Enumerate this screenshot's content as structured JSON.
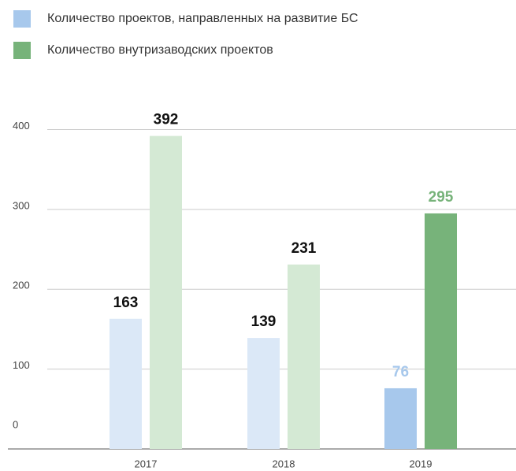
{
  "chart_data": {
    "type": "bar",
    "categories": [
      "2017",
      "2018",
      "2019"
    ],
    "series": [
      {
        "name": "Количество проектов, направленных на развитие БС",
        "color": "#a7c8ec",
        "colors": [
          "#dbe8f7",
          "#dbe8f7",
          "#a7c8ec"
        ],
        "label_colors": [
          "#111111",
          "#111111",
          "#a7c8ec"
        ],
        "values": [
          163,
          139,
          76
        ]
      },
      {
        "name": "Количество внутризаводских проектов",
        "color": "#77b37a",
        "colors": [
          "#d4e9d4",
          "#d4e9d4",
          "#77b37a"
        ],
        "label_colors": [
          "#111111",
          "#111111",
          "#77b37a"
        ],
        "values": [
          392,
          231,
          295
        ]
      }
    ],
    "ylim": [
      0,
      400
    ],
    "yticks": [
      0,
      100,
      200,
      300,
      400
    ],
    "grid": true,
    "legend": "top-left"
  }
}
